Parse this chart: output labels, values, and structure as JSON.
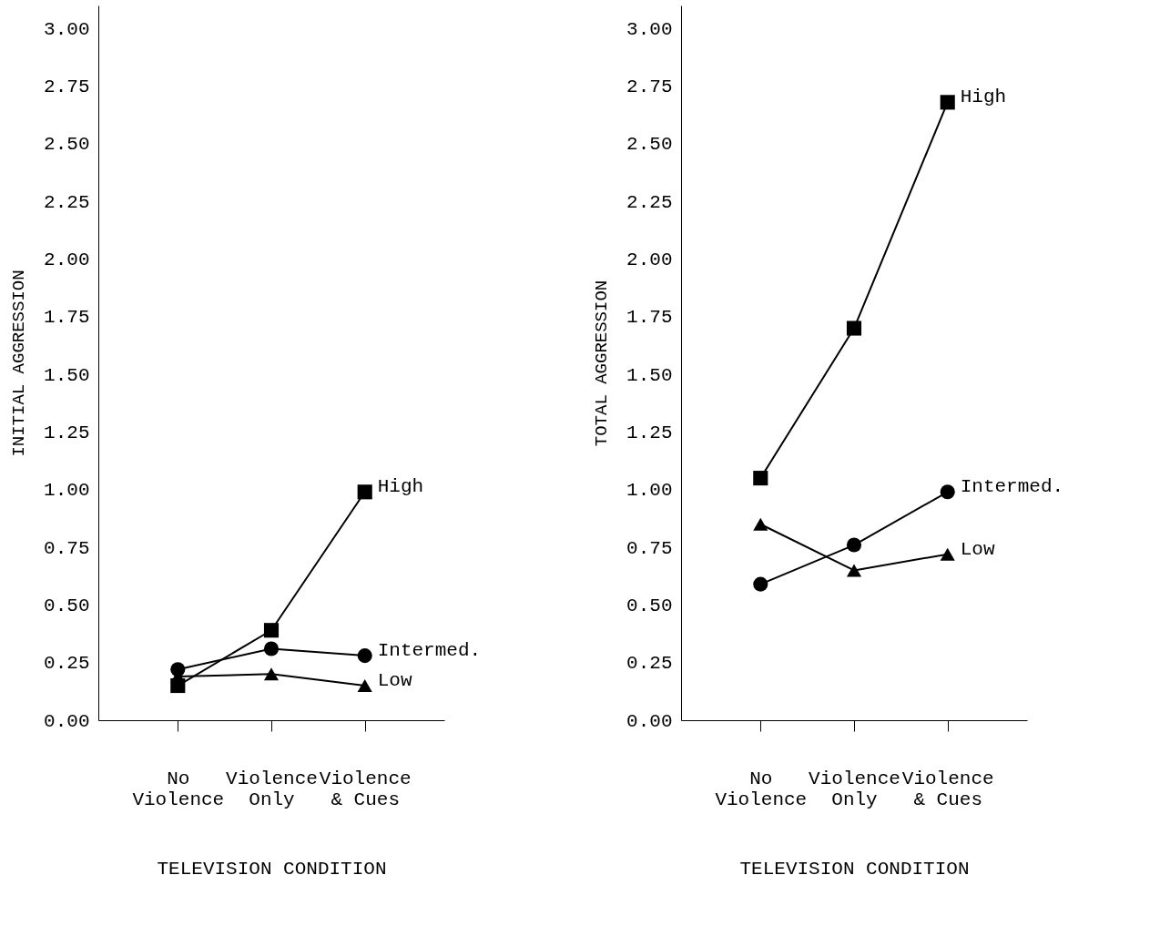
{
  "chart_data": [
    {
      "type": "line",
      "xlabel": "TELEVISION CONDITION",
      "ylabel": "INITIAL AGGRESSION",
      "categories": [
        "No Violence",
        "Violence Only",
        "Violence & Cues"
      ],
      "series": [
        {
          "name": "High",
          "color": "#000000",
          "marker": "square",
          "values": [
            0.15,
            0.39,
            0.99
          ]
        },
        {
          "name": "Intermed.",
          "color": "#000000",
          "marker": "circle",
          "values": [
            0.22,
            0.31,
            0.28
          ]
        },
        {
          "name": "Low",
          "color": "#000000",
          "marker": "triangle",
          "values": [
            0.19,
            0.2,
            0.15
          ]
        }
      ],
      "ylim": [
        0,
        3.1
      ],
      "yticks": [
        {
          "value": 0,
          "label": "0.00"
        },
        {
          "value": 0.25,
          "label": "0.25"
        },
        {
          "value": 0.5,
          "label": "0.50"
        },
        {
          "value": 0.75,
          "label": "0.75"
        },
        {
          "value": 1,
          "label": "1.00"
        },
        {
          "value": 1.25,
          "label": "1.25"
        },
        {
          "value": 1.5,
          "label": "1.50"
        },
        {
          "value": 1.75,
          "label": "1.75"
        },
        {
          "value": 2,
          "label": "2.00"
        },
        {
          "value": 2.25,
          "label": "2.25"
        },
        {
          "value": 2.5,
          "label": "2.50"
        },
        {
          "value": 2.75,
          "label": "2.75"
        },
        {
          "value": 3,
          "label": "3.00"
        }
      ],
      "grid": false,
      "legend": false
    },
    {
      "type": "line",
      "xlabel": "TELEVISION CONDITION",
      "ylabel": "TOTAL AGGRESSION",
      "categories": [
        "No Violence",
        "Violence Only",
        "Violence & Cues"
      ],
      "series": [
        {
          "name": "High",
          "color": "#000000",
          "marker": "square",
          "values": [
            1.05,
            1.7,
            2.68
          ]
        },
        {
          "name": "Intermed.",
          "color": "#000000",
          "marker": "circle",
          "values": [
            0.59,
            0.76,
            0.99
          ]
        },
        {
          "name": "Low",
          "color": "#000000",
          "marker": "triangle",
          "values": [
            0.85,
            0.65,
            0.72
          ]
        }
      ],
      "ylim": [
        0,
        3.1
      ],
      "yticks": [
        {
          "value": 0,
          "label": "0.00"
        },
        {
          "value": 0.25,
          "label": "0.25"
        },
        {
          "value": 0.5,
          "label": "0.50"
        },
        {
          "value": 0.75,
          "label": "0.75"
        },
        {
          "value": 1,
          "label": "1.00"
        },
        {
          "value": 1.25,
          "label": "1.25"
        },
        {
          "value": 1.5,
          "label": "1.50"
        },
        {
          "value": 1.75,
          "label": "1.75"
        },
        {
          "value": 2,
          "label": "2.00"
        },
        {
          "value": 2.25,
          "label": "2.25"
        },
        {
          "value": 2.5,
          "label": "2.50"
        },
        {
          "value": 2.75,
          "label": "2.75"
        },
        {
          "value": 3,
          "label": "3.00"
        }
      ],
      "grid": false,
      "legend": false
    }
  ]
}
